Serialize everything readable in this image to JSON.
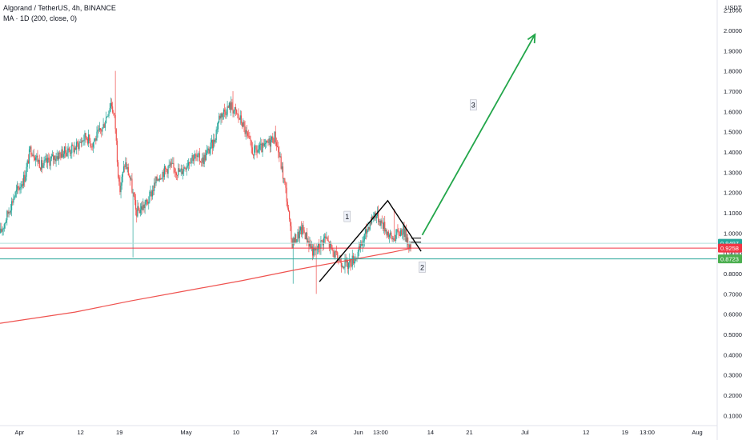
{
  "legend": {
    "symbol": "Algorand / TetherUS, 4h, BINANCE",
    "indicator": "MA · 1D (200, close, 0)"
  },
  "chart_data": {
    "type": "candlestick",
    "currency": "USDT",
    "ylim": [
      0.05,
      2.15
    ],
    "y_ticks": [
      "0.1000",
      "0.2000",
      "0.3000",
      "0.4000",
      "0.5000",
      "0.6000",
      "0.7000",
      "0.8000",
      "0.9000",
      "1.0000",
      "1.1000",
      "1.2000",
      "1.3000",
      "1.4000",
      "1.5000",
      "1.6000",
      "1.7000",
      "1.8000",
      "1.9000",
      "2.0000",
      "2.1000"
    ],
    "x_ticks": [
      {
        "label": "Apr",
        "day": 0
      },
      {
        "label": "12",
        "day": 11
      },
      {
        "label": "19",
        "day": 18
      },
      {
        "label": "May",
        "day": 30
      },
      {
        "label": "10",
        "day": 39
      },
      {
        "label": "17",
        "day": 46
      },
      {
        "label": "24",
        "day": 53
      },
      {
        "label": "Jun",
        "day": 61
      },
      {
        "label": "13:00",
        "day": 65
      },
      {
        "label": "14",
        "day": 74
      },
      {
        "label": "21",
        "day": 81
      },
      {
        "label": "Jul",
        "day": 91
      },
      {
        "label": "12",
        "day": 102
      },
      {
        "label": "19",
        "day": 109
      },
      {
        "label": "13:00",
        "day": 113
      },
      {
        "label": "Aug",
        "day": 122
      }
    ],
    "x_range_days": [
      -3.5,
      125.6
    ],
    "price_path": [
      {
        "day": -3.4,
        "price": 1.0
      },
      {
        "day": -1,
        "price": 1.18
      },
      {
        "day": 1,
        "price": 1.28
      },
      {
        "day": 2,
        "price": 1.42
      },
      {
        "day": 4,
        "price": 1.33
      },
      {
        "day": 6,
        "price": 1.37
      },
      {
        "day": 8,
        "price": 1.4
      },
      {
        "day": 10,
        "price": 1.42
      },
      {
        "day": 12,
        "price": 1.48
      },
      {
        "day": 13,
        "price": 1.44
      },
      {
        "day": 15,
        "price": 1.52
      },
      {
        "day": 16.5,
        "price": 1.65
      },
      {
        "day": 17.2,
        "price": 1.55
      },
      {
        "day": 18,
        "price": 1.2
      },
      {
        "day": 19,
        "price": 1.35
      },
      {
        "day": 20,
        "price": 1.26
      },
      {
        "day": 21,
        "price": 1.1
      },
      {
        "day": 23,
        "price": 1.15
      },
      {
        "day": 25,
        "price": 1.28
      },
      {
        "day": 27,
        "price": 1.33
      },
      {
        "day": 29,
        "price": 1.3
      },
      {
        "day": 31,
        "price": 1.38
      },
      {
        "day": 33,
        "price": 1.36
      },
      {
        "day": 35,
        "price": 1.45
      },
      {
        "day": 36,
        "price": 1.58
      },
      {
        "day": 38,
        "price": 1.63
      },
      {
        "day": 40,
        "price": 1.55
      },
      {
        "day": 42,
        "price": 1.4
      },
      {
        "day": 44,
        "price": 1.42
      },
      {
        "day": 46,
        "price": 1.48
      },
      {
        "day": 47,
        "price": 1.35
      },
      {
        "day": 48,
        "price": 1.2
      },
      {
        "day": 49,
        "price": 0.95
      },
      {
        "day": 51,
        "price": 1.02
      },
      {
        "day": 53,
        "price": 0.9
      },
      {
        "day": 55,
        "price": 0.98
      },
      {
        "day": 57,
        "price": 0.88
      },
      {
        "day": 59,
        "price": 0.84
      },
      {
        "day": 61,
        "price": 0.9
      },
      {
        "day": 63,
        "price": 1.05
      },
      {
        "day": 64,
        "price": 1.1
      },
      {
        "day": 65.5,
        "price": 1.04
      },
      {
        "day": 67,
        "price": 0.97
      },
      {
        "day": 69,
        "price": 1.02
      },
      {
        "day": 70,
        "price": 0.96
      },
      {
        "day": 70.5,
        "price": 0.9
      }
    ],
    "spikes": [
      {
        "day": 17.2,
        "high": 1.8
      },
      {
        "day": 20.5,
        "low": 0.88
      },
      {
        "day": 38.5,
        "high": 1.7
      },
      {
        "day": 49.2,
        "low": 0.75
      },
      {
        "day": 53.5,
        "low": 0.7
      },
      {
        "day": 67.5,
        "high": 1.12
      }
    ],
    "moving_average": {
      "name": "MA · 1D (200, close, 0)",
      "color": "#ef5350",
      "points": [
        {
          "day": -3.5,
          "price": 0.555
        },
        {
          "day": 10,
          "price": 0.61
        },
        {
          "day": 20,
          "price": 0.665
        },
        {
          "day": 30,
          "price": 0.715
        },
        {
          "day": 40,
          "price": 0.765
        },
        {
          "day": 50,
          "price": 0.82
        },
        {
          "day": 60,
          "price": 0.87
        },
        {
          "day": 67,
          "price": 0.905
        },
        {
          "day": 70.5,
          "price": 0.925
        }
      ]
    },
    "horizontal_lines": [
      {
        "price": 0.9497,
        "label": "0.9497",
        "line_color": "#b2dfdb",
        "tag_color": "#26a69a"
      },
      {
        "price": 0.9258,
        "label": "0.9258",
        "line_color": "#f23645",
        "tag_color": "#f23645"
      },
      {
        "price": 0.8723,
        "label": "0.8723",
        "line_color": "#26a69a",
        "tag_color": "#4caf50"
      }
    ],
    "drawings": {
      "black_wedge": [
        {
          "day": 54,
          "price": 0.76
        },
        {
          "day": 66.3,
          "price": 1.16
        },
        {
          "day": 72.3,
          "price": 0.91
        }
      ],
      "flag_mark": [
        {
          "day": 70.5,
          "price": 0.975
        },
        {
          "day": 72.3,
          "price": 0.975
        },
        {
          "day": 70.5,
          "price": 0.955
        },
        {
          "day": 72.3,
          "price": 0.955
        }
      ],
      "green_arrow": [
        {
          "day": 72.5,
          "price": 0.99
        },
        {
          "day": 92.8,
          "price": 1.98
        }
      ],
      "labels": [
        {
          "text": "1",
          "day": 59,
          "price": 1.08
        },
        {
          "text": "2",
          "day": 72.5,
          "price": 0.83
        },
        {
          "text": "3",
          "day": 81.7,
          "price": 1.63
        }
      ]
    },
    "colors": {
      "up": "#26a69a",
      "down": "#ef5350",
      "arrow": "#22a64a",
      "wedge": "#000000",
      "grid": "#f0f3fa"
    },
    "grid": false
  }
}
